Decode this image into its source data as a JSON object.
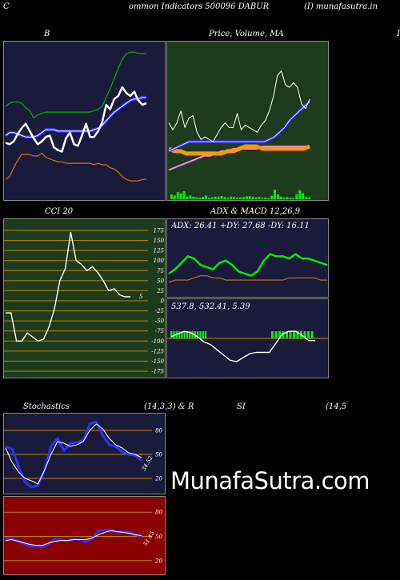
{
  "header": {
    "left_letter": "C",
    "title": "ommon  Indicators 500096  DABUR",
    "source": "(I) munafasutra.in"
  },
  "labels": {
    "bb": "B",
    "price_ma": "Price,  Volume, MA",
    "cut_letter": "I",
    "cci": "CCI 20",
    "adx_macd": "ADX  & MACD 12,26,9",
    "stoch_left": "Stochastics",
    "stoch_right": "(14,3,3) & R",
    "si": "SI",
    "rsi_params": "(14,5"
  },
  "brand": "MunafaSutra.com",
  "colors": {
    "bb_bg": "#1a1a3a",
    "price_bg": "#1e3b1e",
    "adx_bg": "#1a1a3a",
    "stoch_bg": "#1a1a3a",
    "rsi_bg": "#8b0000",
    "grid": "#b8860b"
  },
  "chart_data": [
    {
      "type": "line",
      "name": "bollinger",
      "series": [
        {
          "name": "",
          "values": [
            128,
            130,
            131,
            131,
            130,
            127,
            125,
            120,
            122,
            123,
            124,
            124,
            124,
            124,
            124,
            124,
            124,
            124,
            124,
            124,
            124,
            124,
            125,
            126,
            128,
            134,
            140,
            147,
            154,
            160,
            164,
            165,
            165,
            164,
            164,
            164
          ]
        },
        {
          "name": "",
          "values": [
            108,
            110,
            110,
            109,
            108,
            107,
            107,
            107,
            108,
            110,
            112,
            112,
            112,
            111,
            111,
            111,
            111,
            111,
            111,
            111,
            111,
            111,
            112,
            113,
            115,
            118,
            121,
            124,
            126,
            128,
            130,
            132,
            133,
            133,
            134,
            134
          ]
        },
        {
          "name": "",
          "values": [
            78,
            80,
            86,
            91,
            95,
            95,
            95,
            94,
            94,
            96,
            93,
            92,
            91,
            90,
            90,
            89,
            89,
            89,
            89,
            89,
            89,
            89,
            88,
            89,
            88,
            88,
            86,
            85,
            83,
            80,
            78,
            77,
            77,
            77,
            78,
            78
          ]
        },
        {
          "name": "",
          "values": [
            103,
            102,
            104,
            109,
            113,
            116,
            111,
            106,
            102,
            104,
            107,
            108,
            100,
            98,
            97,
            106,
            110,
            102,
            101,
            108,
            116,
            107,
            107,
            111,
            117,
            129,
            126,
            133,
            135,
            141,
            137,
            135,
            138,
            132,
            129,
            130
          ]
        }
      ]
    },
    {
      "type": "bar+line",
      "name": "price_volume",
      "volume": [
        1.5,
        1.2,
        2.2,
        1.8,
        2.5,
        0.8,
        1.2,
        0.8,
        0.6,
        0.5,
        0.7,
        1.2,
        0.5,
        0.6,
        0.8,
        0.8,
        1.0,
        0.7,
        0.5,
        0.8,
        0.7,
        0.5,
        0.6,
        0.7,
        0.9,
        1.0,
        0.8,
        0.6,
        0.7,
        0.5,
        0.6,
        0.4,
        1.1,
        3.0,
        1.5,
        0.8,
        0.5,
        0.7,
        0.5,
        0.4,
        1.6,
        2.8,
        1.9,
        0.7,
        0.6
      ],
      "series": [
        {
          "name": "",
          "values": [
            132,
            129,
            132,
            137,
            130,
            134,
            135,
            128,
            125,
            126,
            125,
            124,
            127,
            130,
            132,
            130,
            130,
            136,
            129,
            131,
            130,
            129,
            128,
            131,
            133,
            137,
            143,
            152,
            154,
            148,
            147,
            149,
            147,
            140,
            138,
            142
          ]
        },
        {
          "name": "",
          "values": [
            120,
            121,
            122,
            123,
            124,
            124,
            124,
            124,
            124,
            124,
            124,
            124,
            124,
            124,
            124,
            124,
            124,
            124,
            124,
            124,
            125,
            126,
            128,
            130,
            133,
            135,
            137,
            139,
            141
          ]
        },
        {
          "name": "",
          "values": [
            121,
            120,
            120,
            119,
            119,
            119,
            119,
            119,
            119,
            119,
            120,
            120,
            121,
            122,
            122,
            122,
            121,
            121,
            121,
            121,
            121,
            121,
            121,
            121,
            122
          ]
        },
        {
          "name": "",
          "values": [
            112,
            113,
            114,
            115,
            116,
            117,
            118,
            118,
            119,
            120,
            120,
            121,
            121,
            121,
            121,
            121,
            122,
            122,
            122,
            122,
            122,
            122,
            122,
            122,
            122
          ]
        }
      ]
    },
    {
      "type": "line",
      "name": "cci",
      "ylim": [
        -175,
        175
      ],
      "yticks": [
        175,
        150,
        125,
        100,
        75,
        50,
        25,
        0,
        -25,
        -50,
        -75,
        -100,
        -125,
        -150,
        -175
      ],
      "series": [
        {
          "name": "",
          "values": [
            -30,
            -30,
            -100,
            -100,
            -80,
            -90,
            -100,
            -95,
            -65,
            -20,
            50,
            80,
            170,
            100,
            90,
            75,
            85,
            70,
            50,
            25,
            30,
            15,
            10,
            10
          ]
        }
      ],
      "last_label": "5"
    },
    {
      "type": "line",
      "name": "adx",
      "texts": {
        "adx": "ADX: 26.41",
        "pdy": "+DY: 27.68",
        "mdy": "-DY: 16.11"
      },
      "series": [
        {
          "name": "",
          "values": [
            20,
            22,
            25,
            28,
            27,
            24,
            23,
            22,
            25,
            26,
            24,
            21,
            20,
            19,
            21,
            26,
            29,
            28,
            28,
            27,
            29,
            27,
            27,
            26,
            25,
            24
          ]
        },
        {
          "name": "",
          "values": [
            16,
            17,
            17,
            17,
            18,
            19,
            19,
            18,
            18,
            17,
            17,
            17,
            17,
            17,
            17,
            17,
            17,
            17,
            17,
            18,
            18,
            18,
            18,
            18,
            17,
            17
          ]
        }
      ]
    },
    {
      "type": "bar+line",
      "name": "macd",
      "texts": {
        "macd": "537.8",
        "signal": "532.41",
        "hist": "5.39"
      },
      "series": [
        {
          "name": "",
          "values": [
            540,
            542,
            544,
            543,
            540,
            536,
            534,
            530,
            526,
            522,
            521,
            524,
            527,
            528,
            528,
            528,
            535,
            542,
            544,
            544,
            541,
            537,
            537
          ]
        }
      ]
    },
    {
      "type": "line",
      "name": "stochastics",
      "yticks": [
        80,
        50,
        20
      ],
      "series": [
        {
          "name": "",
          "values": [
            60,
            57,
            35,
            15,
            9,
            11,
            30,
            60,
            70,
            55,
            64,
            65,
            68,
            88,
            91,
            74,
            62,
            60,
            53,
            50,
            49,
            42
          ]
        },
        {
          "name": "",
          "values": [
            58,
            40,
            28,
            20,
            17,
            13,
            30,
            50,
            66,
            64,
            60,
            62,
            66,
            80,
            88,
            82,
            70,
            62,
            58,
            52,
            50,
            46
          ]
        }
      ],
      "last_label": "34.52"
    },
    {
      "type": "line",
      "name": "rsi",
      "yticks": [
        80,
        50,
        20
      ],
      "series": [
        {
          "name": "",
          "values": [
            48,
            48,
            45,
            41,
            38,
            38,
            37,
            41,
            47,
            46,
            44,
            47,
            46,
            43,
            48,
            57,
            58,
            58,
            55,
            56,
            55,
            52,
            50
          ]
        },
        {
          "name": "",
          "values": [
            45,
            46,
            44,
            42,
            40,
            39,
            39,
            42,
            44,
            45,
            45,
            46,
            46,
            46,
            48,
            52,
            55,
            57,
            56,
            55,
            54,
            52,
            51
          ]
        }
      ],
      "last_label": "51.45"
    }
  ]
}
